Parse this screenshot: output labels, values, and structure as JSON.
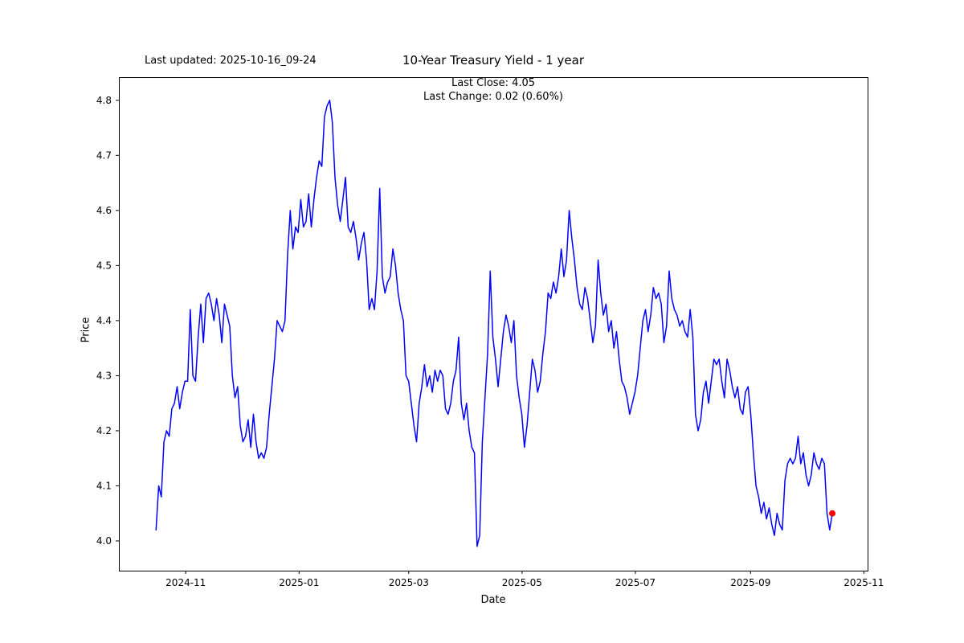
{
  "figure": {
    "last_updated": "Last updated: 2025-10-16_09-24",
    "title": "10-Year Treasury Yield - 1 year",
    "subtitle_line1": "Last Close: 4.05",
    "subtitle_line2": "Last Change: 0.02 (0.60%)",
    "xlabel": "Date",
    "ylabel": "Price"
  },
  "chart_data": {
    "type": "line",
    "title": "10-Year Treasury Yield - 1 year",
    "subtitle": [
      "Last Close: 4.05",
      "Last Change: 0.02 (0.60%)"
    ],
    "annotation": "Last updated: 2025-10-16_09-24",
    "xlabel": "Date",
    "ylabel": "Price",
    "series_name": "10-Year Treasury Yield",
    "line_color": "#0000ff",
    "marker_color": "#ff0000",
    "axis_color": "#000000",
    "legend": "none",
    "grid": false,
    "x_tick_labels": [
      "2024-11",
      "2025-01",
      "2025-03",
      "2025-05",
      "2025-07",
      "2025-09",
      "2025-11"
    ],
    "x_tick_days": [
      16,
      77,
      136,
      197,
      258,
      320,
      381
    ],
    "y_ticks": [
      4.0,
      4.1,
      4.2,
      4.3,
      4.4,
      4.5,
      4.6,
      4.7,
      4.8
    ],
    "xlim_days": [
      -20,
      383
    ],
    "ylim": [
      3.946,
      4.842
    ],
    "x_start_day": 0,
    "x_end_day": 364,
    "x_epoch": "2024-10-16",
    "last_close": 4.05,
    "last_change": "0.02 (0.60%)",
    "values": [
      4.02,
      4.1,
      4.08,
      4.18,
      4.2,
      4.19,
      4.24,
      4.25,
      4.28,
      4.24,
      4.27,
      4.29,
      4.29,
      4.42,
      4.3,
      4.29,
      4.37,
      4.43,
      4.36,
      4.44,
      4.45,
      4.43,
      4.4,
      4.44,
      4.41,
      4.36,
      4.43,
      4.41,
      4.39,
      4.3,
      4.26,
      4.28,
      4.21,
      4.18,
      4.19,
      4.22,
      4.17,
      4.23,
      4.18,
      4.15,
      4.16,
      4.15,
      4.17,
      4.23,
      4.28,
      4.33,
      4.4,
      4.39,
      4.38,
      4.4,
      4.52,
      4.6,
      4.53,
      4.57,
      4.56,
      4.62,
      4.57,
      4.58,
      4.63,
      4.57,
      4.62,
      4.66,
      4.69,
      4.68,
      4.77,
      4.79,
      4.8,
      4.76,
      4.66,
      4.61,
      4.58,
      4.62,
      4.66,
      4.57,
      4.56,
      4.58,
      4.55,
      4.51,
      4.54,
      4.56,
      4.51,
      4.42,
      4.44,
      4.42,
      4.49,
      4.64,
      4.48,
      4.45,
      4.47,
      4.48,
      4.53,
      4.5,
      4.45,
      4.42,
      4.4,
      4.3,
      4.29,
      4.25,
      4.21,
      4.18,
      4.25,
      4.28,
      4.32,
      4.28,
      4.3,
      4.27,
      4.31,
      4.29,
      4.31,
      4.3,
      4.24,
      4.23,
      4.25,
      4.29,
      4.31,
      4.37,
      4.25,
      4.22,
      4.25,
      4.2,
      4.17,
      4.16,
      3.99,
      4.01,
      4.18,
      4.26,
      4.34,
      4.49,
      4.37,
      4.33,
      4.28,
      4.33,
      4.38,
      4.41,
      4.39,
      4.36,
      4.4,
      4.3,
      4.26,
      4.23,
      4.17,
      4.21,
      4.27,
      4.33,
      4.31,
      4.27,
      4.29,
      4.34,
      4.38,
      4.45,
      4.44,
      4.47,
      4.45,
      4.48,
      4.53,
      4.48,
      4.51,
      4.6,
      4.55,
      4.51,
      4.46,
      4.43,
      4.42,
      4.46,
      4.44,
      4.4,
      4.36,
      4.39,
      4.51,
      4.45,
      4.41,
      4.43,
      4.38,
      4.4,
      4.35,
      4.38,
      4.33,
      4.29,
      4.28,
      4.26,
      4.23,
      4.25,
      4.27,
      4.3,
      4.35,
      4.4,
      4.42,
      4.38,
      4.41,
      4.46,
      4.44,
      4.45,
      4.43,
      4.36,
      4.39,
      4.49,
      4.44,
      4.42,
      4.41,
      4.39,
      4.4,
      4.38,
      4.37,
      4.42,
      4.37,
      4.23,
      4.2,
      4.22,
      4.27,
      4.29,
      4.25,
      4.29,
      4.33,
      4.32,
      4.33,
      4.29,
      4.26,
      4.33,
      4.31,
      4.28,
      4.26,
      4.28,
      4.24,
      4.23,
      4.27,
      4.28,
      4.23,
      4.16,
      4.1,
      4.08,
      4.05,
      4.07,
      4.04,
      4.06,
      4.03,
      4.01,
      4.05,
      4.03,
      4.02,
      4.11,
      4.14,
      4.15,
      4.14,
      4.15,
      4.19,
      4.14,
      4.16,
      4.12,
      4.1,
      4.12,
      4.16,
      4.14,
      4.13,
      4.15,
      4.14,
      4.05,
      4.02,
      4.05
    ]
  }
}
